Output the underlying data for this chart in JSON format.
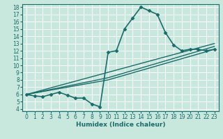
{
  "xlabel": "Humidex (Indice chaleur)",
  "bg_color": "#c8e8de",
  "grid_color": "#ffffff",
  "line_color": "#1a6b6b",
  "xlim_min": -0.5,
  "xlim_max": 23.5,
  "ylim_min": 3.7,
  "ylim_max": 18.4,
  "xticks": [
    0,
    1,
    2,
    3,
    4,
    5,
    6,
    7,
    8,
    9,
    10,
    11,
    12,
    13,
    14,
    15,
    16,
    17,
    18,
    19,
    20,
    21,
    22,
    23
  ],
  "yticks": [
    4,
    5,
    6,
    7,
    8,
    9,
    10,
    11,
    12,
    13,
    14,
    15,
    16,
    17,
    18
  ],
  "main_x": [
    0,
    1,
    2,
    3,
    4,
    5,
    6,
    7,
    8,
    9,
    10,
    11,
    12,
    13,
    14,
    15,
    16,
    17,
    18,
    19,
    20,
    21,
    22,
    23
  ],
  "main_y": [
    6.0,
    5.8,
    5.7,
    6.0,
    6.3,
    5.9,
    5.5,
    5.5,
    4.7,
    4.3,
    11.8,
    12.0,
    15.0,
    16.5,
    18.0,
    17.5,
    17.0,
    14.5,
    12.8,
    12.0,
    12.2,
    12.2,
    12.0,
    12.2
  ],
  "trend_lines": [
    {
      "x": [
        0,
        10,
        23
      ],
      "y": [
        6.0,
        8.0,
        12.2
      ]
    },
    {
      "x": [
        0,
        10,
        23
      ],
      "y": [
        6.0,
        8.3,
        12.6
      ]
    },
    {
      "x": [
        0,
        23
      ],
      "y": [
        6.0,
        13.0
      ]
    }
  ],
  "markersize": 2.5,
  "linewidth_main": 1.2,
  "linewidth_trend": 1.0,
  "tick_fontsize": 5.5,
  "xlabel_fontsize": 6.5
}
